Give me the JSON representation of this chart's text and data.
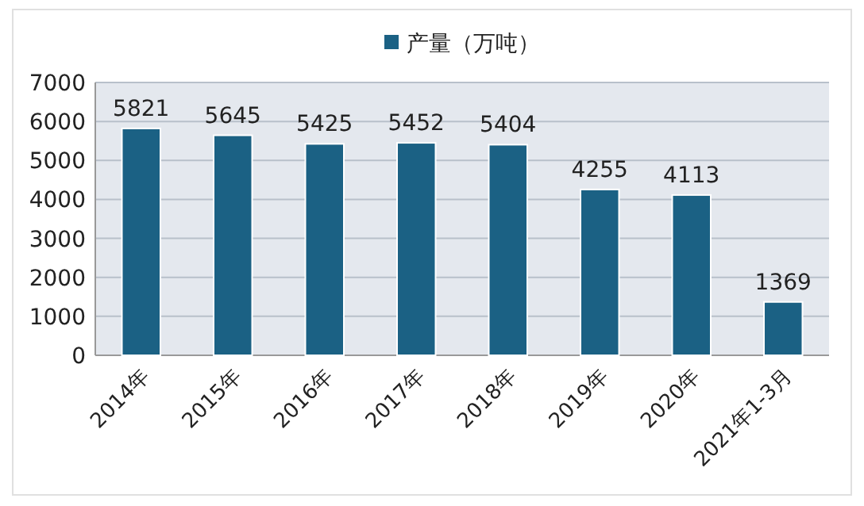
{
  "chart_data": {
    "type": "bar",
    "categories": [
      "2014年",
      "2015年",
      "2016年",
      "2017年",
      "2018年",
      "2019年",
      "2020年",
      "2021年1-3月"
    ],
    "series": [
      {
        "name": "产量（万吨）",
        "color": "#1b6184",
        "values": [
          5821,
          5645,
          5425,
          5452,
          5404,
          4255,
          4113,
          1369
        ]
      }
    ],
    "ylim": [
      0,
      7000
    ],
    "yticks": [
      0,
      1000,
      2000,
      3000,
      4000,
      5000,
      6000,
      7000
    ],
    "grid": "y",
    "legend": "top",
    "data_labels": true
  }
}
